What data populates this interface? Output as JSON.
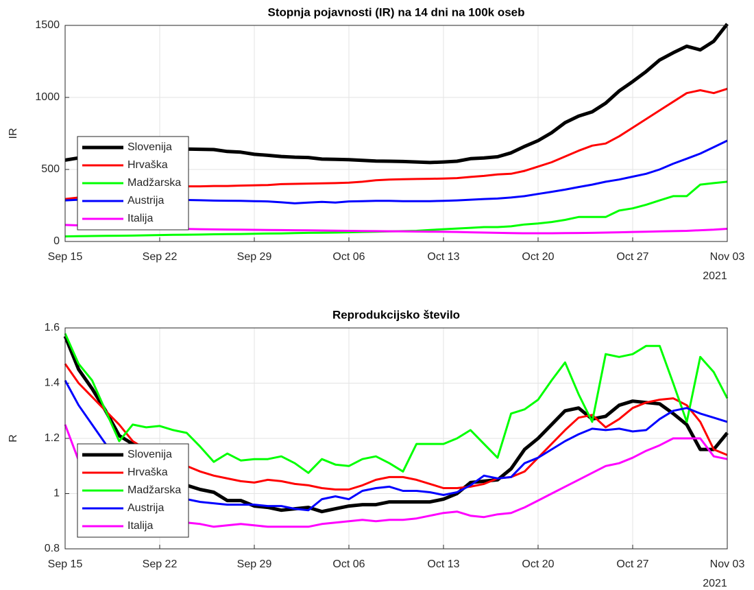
{
  "chart_data": [
    {
      "type": "line",
      "title": "Stopnja pojavnosti (IR) na 14 dni na 100k oseb",
      "y_label": "IR",
      "x_secondary_label": "2021",
      "x": [
        "2021-09-15",
        "2021-09-16",
        "2021-09-17",
        "2021-09-18",
        "2021-09-19",
        "2021-09-20",
        "2021-09-21",
        "2021-09-22",
        "2021-09-23",
        "2021-09-24",
        "2021-09-25",
        "2021-09-26",
        "2021-09-27",
        "2021-09-28",
        "2021-09-29",
        "2021-09-30",
        "2021-10-01",
        "2021-10-02",
        "2021-10-03",
        "2021-10-04",
        "2021-10-05",
        "2021-10-06",
        "2021-10-07",
        "2021-10-08",
        "2021-10-09",
        "2021-10-10",
        "2021-10-11",
        "2021-10-12",
        "2021-10-13",
        "2021-10-14",
        "2021-10-15",
        "2021-10-16",
        "2021-10-17",
        "2021-10-18",
        "2021-10-19",
        "2021-10-20",
        "2021-10-21",
        "2021-10-22",
        "2021-10-23",
        "2021-10-24",
        "2021-10-25",
        "2021-10-26",
        "2021-10-27",
        "2021-10-28",
        "2021-10-29",
        "2021-10-30",
        "2021-10-31",
        "2021-11-01",
        "2021-11-02",
        "2021-11-03"
      ],
      "xlim": [
        "2021-09-15",
        "2021-11-03"
      ],
      "xticks": [
        {
          "value": "2021-09-15",
          "label": "Sep 15"
        },
        {
          "value": "2021-09-22",
          "label": "Sep 22"
        },
        {
          "value": "2021-09-29",
          "label": "Sep 29"
        },
        {
          "value": "2021-10-06",
          "label": "Oct 06"
        },
        {
          "value": "2021-10-13",
          "label": "Oct 13"
        },
        {
          "value": "2021-10-20",
          "label": "Oct 20"
        },
        {
          "value": "2021-10-27",
          "label": "Oct 27"
        },
        {
          "value": "2021-11-03",
          "label": "Nov 03"
        }
      ],
      "ylim": [
        0,
        1500
      ],
      "yticks": [
        0,
        500,
        1000,
        1500
      ],
      "grid": true,
      "legend": "lower left",
      "series": [
        {
          "name": "Slovenija",
          "color": "#000000",
          "values": [
            565,
            580,
            595,
            610,
            620,
            630,
            635,
            640,
            640,
            642,
            640,
            638,
            625,
            620,
            605,
            598,
            590,
            585,
            583,
            572,
            570,
            568,
            563,
            558,
            557,
            555,
            552,
            548,
            552,
            557,
            575,
            580,
            588,
            615,
            660,
            700,
            755,
            825,
            870,
            900,
            960,
            1045,
            1110,
            1180,
            1260,
            1310,
            1355,
            1330,
            1390,
            1510
          ]
        },
        {
          "name": "Hrvaška",
          "color": "#ff0000",
          "values": [
            295,
            305,
            320,
            335,
            350,
            362,
            372,
            380,
            383,
            383,
            383,
            385,
            385,
            388,
            390,
            392,
            398,
            400,
            402,
            404,
            405,
            408,
            415,
            425,
            430,
            432,
            434,
            435,
            437,
            440,
            448,
            455,
            465,
            470,
            490,
            520,
            550,
            590,
            630,
            665,
            680,
            730,
            790,
            850,
            910,
            970,
            1030,
            1050,
            1030,
            1060
          ]
        },
        {
          "name": "Madžarska",
          "color": "#00ff00",
          "values": [
            35,
            37,
            38,
            39,
            40,
            41,
            43,
            45,
            46,
            47,
            48,
            50,
            51,
            52,
            54,
            55,
            56,
            58,
            60,
            61,
            62,
            64,
            66,
            68,
            70,
            72,
            74,
            80,
            85,
            90,
            95,
            100,
            100,
            105,
            118,
            125,
            135,
            150,
            170,
            170,
            170,
            215,
            230,
            255,
            285,
            315,
            315,
            395,
            405,
            415
          ]
        },
        {
          "name": "Austrija",
          "color": "#0000ff",
          "values": [
            285,
            290,
            295,
            295,
            295,
            295,
            293,
            292,
            290,
            288,
            286,
            284,
            283,
            282,
            280,
            278,
            272,
            265,
            270,
            275,
            270,
            278,
            280,
            282,
            282,
            280,
            280,
            280,
            282,
            285,
            290,
            295,
            298,
            305,
            315,
            330,
            345,
            360,
            378,
            395,
            415,
            430,
            450,
            470,
            500,
            540,
            575,
            610,
            655,
            700
          ]
        },
        {
          "name": "Italija",
          "color": "#ff00ff",
          "values": [
            115,
            112,
            108,
            104,
            100,
            97,
            94,
            91,
            89,
            87,
            85,
            84,
            83,
            82,
            81,
            80,
            79,
            78,
            77,
            76,
            75,
            74,
            73,
            72,
            71,
            70,
            69,
            68,
            67,
            66,
            64,
            62,
            60,
            58,
            57,
            57,
            57,
            58,
            59,
            60,
            62,
            64,
            66,
            68,
            70,
            72,
            74,
            78,
            82,
            88
          ]
        }
      ]
    },
    {
      "type": "line",
      "title": "Reprodukcijsko število",
      "y_label": "R",
      "x_secondary_label": "2021",
      "x": [
        "2021-09-15",
        "2021-09-16",
        "2021-09-17",
        "2021-09-18",
        "2021-09-19",
        "2021-09-20",
        "2021-09-21",
        "2021-09-22",
        "2021-09-23",
        "2021-09-24",
        "2021-09-25",
        "2021-09-26",
        "2021-09-27",
        "2021-09-28",
        "2021-09-29",
        "2021-09-30",
        "2021-10-01",
        "2021-10-02",
        "2021-10-03",
        "2021-10-04",
        "2021-10-05",
        "2021-10-06",
        "2021-10-07",
        "2021-10-08",
        "2021-10-09",
        "2021-10-10",
        "2021-10-11",
        "2021-10-12",
        "2021-10-13",
        "2021-10-14",
        "2021-10-15",
        "2021-10-16",
        "2021-10-17",
        "2021-10-18",
        "2021-10-19",
        "2021-10-20",
        "2021-10-21",
        "2021-10-22",
        "2021-10-23",
        "2021-10-24",
        "2021-10-25",
        "2021-10-26",
        "2021-10-27",
        "2021-10-28",
        "2021-10-29",
        "2021-10-30",
        "2021-10-31",
        "2021-11-01",
        "2021-11-02",
        "2021-11-03"
      ],
      "xlim": [
        "2021-09-15",
        "2021-11-03"
      ],
      "xticks": [
        {
          "value": "2021-09-15",
          "label": "Sep 15"
        },
        {
          "value": "2021-09-22",
          "label": "Sep 22"
        },
        {
          "value": "2021-09-29",
          "label": "Sep 29"
        },
        {
          "value": "2021-10-06",
          "label": "Oct 06"
        },
        {
          "value": "2021-10-13",
          "label": "Oct 13"
        },
        {
          "value": "2021-10-20",
          "label": "Oct 20"
        },
        {
          "value": "2021-10-27",
          "label": "Oct 27"
        },
        {
          "value": "2021-11-03",
          "label": "Nov 03"
        }
      ],
      "ylim": [
        0.8,
        1.6
      ],
      "yticks": [
        0.8,
        1,
        1.2,
        1.4,
        1.6
      ],
      "grid": true,
      "legend": "lower left",
      "series": [
        {
          "name": "Slovenija",
          "color": "#000000",
          "values": [
            1.57,
            1.45,
            1.38,
            1.3,
            1.21,
            1.18,
            1.14,
            1.1,
            1.06,
            1.03,
            1.015,
            1.005,
            0.975,
            0.975,
            0.955,
            0.95,
            0.94,
            0.945,
            0.95,
            0.935,
            0.945,
            0.955,
            0.96,
            0.96,
            0.97,
            0.97,
            0.97,
            0.97,
            0.98,
            1.0,
            1.04,
            1.045,
            1.05,
            1.09,
            1.16,
            1.2,
            1.25,
            1.3,
            1.31,
            1.27,
            1.28,
            1.32,
            1.335,
            1.33,
            1.325,
            1.29,
            1.25,
            1.16,
            1.16,
            1.22
          ]
        },
        {
          "name": "Hrvaška",
          "color": "#ff0000",
          "values": [
            1.47,
            1.4,
            1.35,
            1.3,
            1.25,
            1.19,
            1.16,
            1.14,
            1.12,
            1.1,
            1.08,
            1.065,
            1.055,
            1.045,
            1.04,
            1.05,
            1.045,
            1.035,
            1.03,
            1.02,
            1.015,
            1.015,
            1.03,
            1.05,
            1.06,
            1.06,
            1.05,
            1.035,
            1.02,
            1.02,
            1.025,
            1.035,
            1.055,
            1.06,
            1.08,
            1.13,
            1.18,
            1.23,
            1.275,
            1.285,
            1.24,
            1.27,
            1.31,
            1.33,
            1.34,
            1.345,
            1.32,
            1.26,
            1.16,
            1.14
          ]
        },
        {
          "name": "Madžarska",
          "color": "#00ff00",
          "values": [
            1.58,
            1.47,
            1.41,
            1.3,
            1.19,
            1.25,
            1.24,
            1.245,
            1.23,
            1.22,
            1.17,
            1.115,
            1.145,
            1.12,
            1.125,
            1.125,
            1.135,
            1.11,
            1.075,
            1.125,
            1.105,
            1.1,
            1.125,
            1.135,
            1.11,
            1.08,
            1.18,
            1.18,
            1.18,
            1.2,
            1.23,
            1.18,
            1.13,
            1.29,
            1.305,
            1.34,
            1.41,
            1.475,
            1.36,
            1.26,
            1.505,
            1.495,
            1.505,
            1.535,
            1.535,
            1.4,
            1.26,
            1.495,
            1.44,
            1.345
          ]
        },
        {
          "name": "Austrija",
          "color": "#0000ff",
          "values": [
            1.41,
            1.32,
            1.25,
            1.18,
            1.11,
            1.07,
            1.04,
            1.02,
            1.0,
            0.98,
            0.97,
            0.965,
            0.96,
            0.96,
            0.96,
            0.955,
            0.955,
            0.945,
            0.94,
            0.98,
            0.99,
            0.98,
            1.01,
            1.02,
            1.025,
            1.01,
            1.01,
            1.005,
            0.995,
            1.005,
            1.03,
            1.065,
            1.055,
            1.06,
            1.11,
            1.13,
            1.16,
            1.19,
            1.215,
            1.235,
            1.23,
            1.235,
            1.225,
            1.23,
            1.27,
            1.3,
            1.31,
            1.29,
            1.275,
            1.26
          ]
        },
        {
          "name": "Italija",
          "color": "#ff00ff",
          "values": [
            1.25,
            1.12,
            1.06,
            1.02,
            0.99,
            0.96,
            0.94,
            0.92,
            0.905,
            0.895,
            0.89,
            0.88,
            0.885,
            0.89,
            0.885,
            0.88,
            0.88,
            0.88,
            0.88,
            0.89,
            0.895,
            0.9,
            0.905,
            0.9,
            0.905,
            0.905,
            0.91,
            0.92,
            0.93,
            0.935,
            0.92,
            0.915,
            0.925,
            0.93,
            0.95,
            0.975,
            1.0,
            1.025,
            1.05,
            1.075,
            1.1,
            1.11,
            1.13,
            1.155,
            1.175,
            1.2,
            1.2,
            1.2,
            1.135,
            1.125
          ]
        }
      ]
    }
  ]
}
